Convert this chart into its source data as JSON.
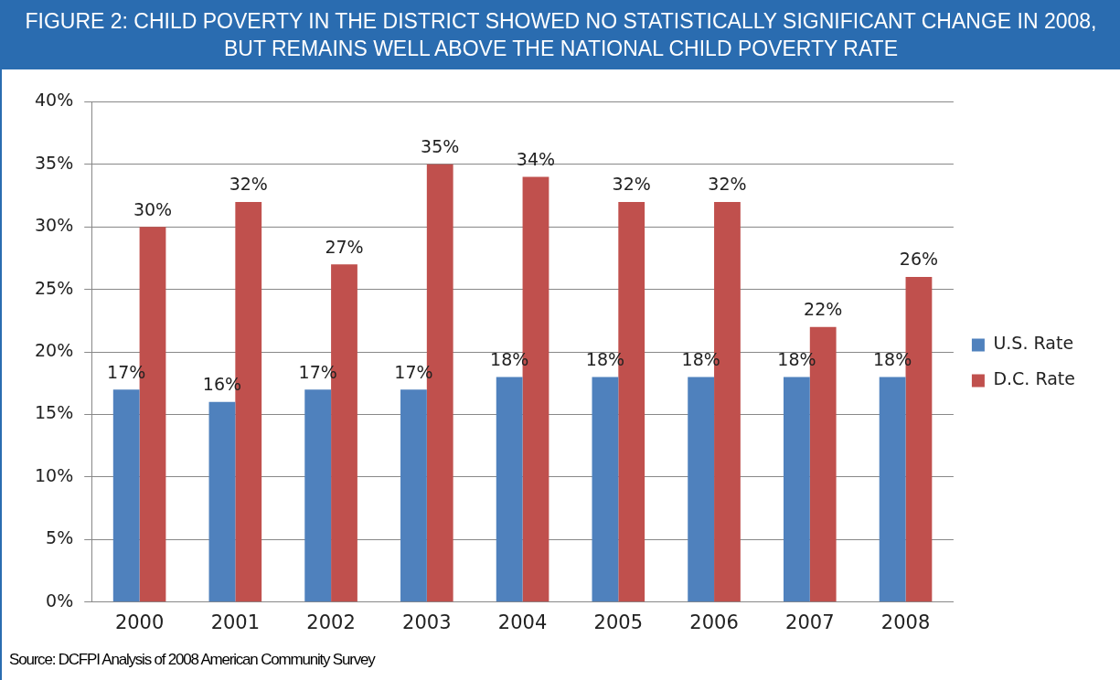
{
  "chart_data": {
    "type": "bar",
    "title": "FIGURE 2: CHILD POVERTY IN THE DISTRICT SHOWED NO STATISTICALLY SIGNIFICANT CHANGE IN 2008, BUT REMAINS WELL ABOVE THE NATIONAL CHILD POVERTY RATE",
    "categories": [
      "2000",
      "2001",
      "2002",
      "2003",
      "2004",
      "2005",
      "2006",
      "2007",
      "2008"
    ],
    "series": [
      {
        "name": "U.S. Rate",
        "color": "#4f81bd",
        "values": [
          17,
          16,
          17,
          17,
          18,
          18,
          18,
          18,
          18
        ],
        "value_labels": [
          "17%",
          "16%",
          "17%",
          "17%",
          "18%",
          "18%",
          "18%",
          "18%",
          "18%"
        ]
      },
      {
        "name": "D.C. Rate",
        "color": "#c0504d",
        "values": [
          30,
          32,
          27,
          35,
          34,
          32,
          32,
          22,
          26
        ],
        "value_labels": [
          "30%",
          "32%",
          "27%",
          "35%",
          "34%",
          "32%",
          "32%",
          "22%",
          "26%"
        ]
      }
    ],
    "ylim": [
      0,
      40
    ],
    "yticks": [
      {
        "value": 0,
        "label": "0%"
      },
      {
        "value": 5,
        "label": "5%"
      },
      {
        "value": 10,
        "label": "10%"
      },
      {
        "value": 15,
        "label": "15%"
      },
      {
        "value": 20,
        "label": "20%"
      },
      {
        "value": 25,
        "label": "25%"
      },
      {
        "value": 30,
        "label": "30%"
      },
      {
        "value": 35,
        "label": "35%"
      },
      {
        "value": 40,
        "label": "40%"
      }
    ],
    "grid": "y",
    "legend": "right",
    "annotations": [
      "Source: DCFPI Analysis of 2008 American Community Survey"
    ]
  }
}
